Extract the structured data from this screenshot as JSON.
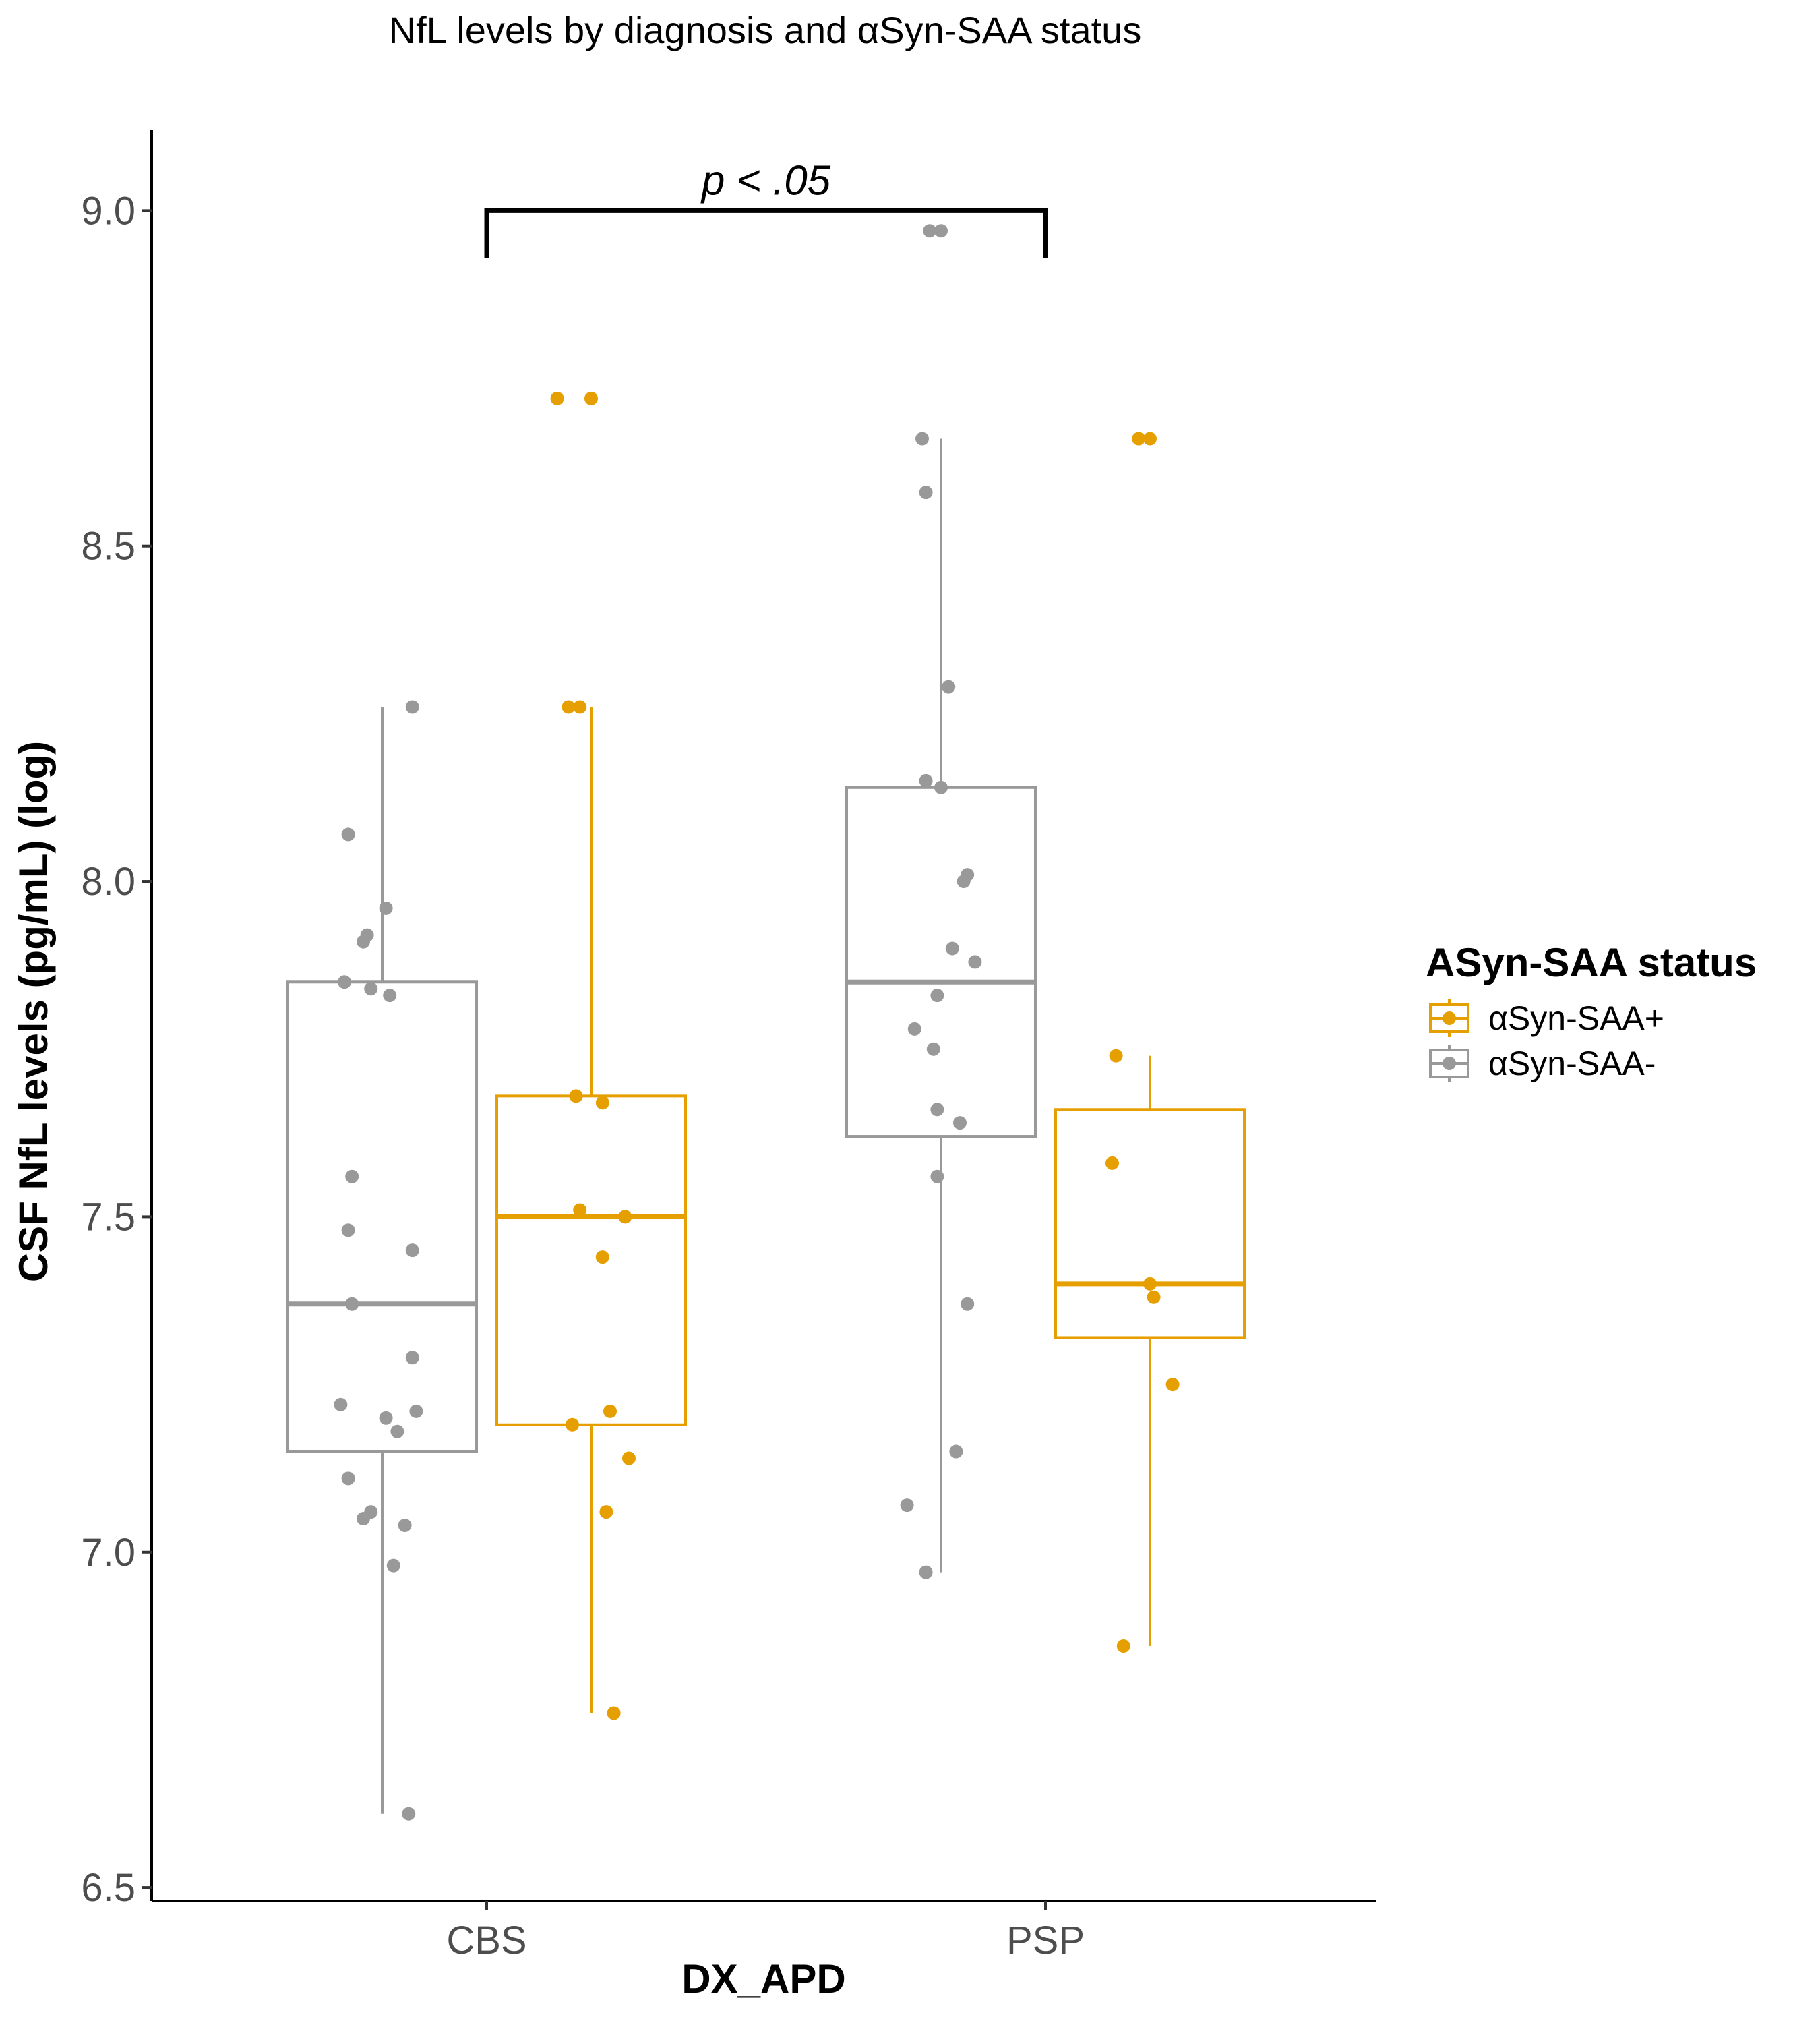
{
  "chart_data": {
    "type": "box",
    "title": "NfL levels by diagnosis and αSyn-SAA status",
    "xlabel": "DX_APD",
    "ylabel": "CSF NfL levels (pg/mL) (log)",
    "categories": [
      "CBS",
      "PSP"
    ],
    "ylim": [
      6.48,
      9.12
    ],
    "yticks": [
      6.5,
      7.0,
      7.5,
      8.0,
      8.5,
      9.0
    ],
    "ytick_labels": [
      "6.5",
      "7.0",
      "7.5",
      "8.0",
      "8.5",
      "9.0"
    ],
    "grid": false,
    "legend": {
      "title": "ASyn-SAA status",
      "placement": "right",
      "items": [
        {
          "label": "αSyn-SAA+",
          "color": "#E69F00"
        },
        {
          "label": "αSyn-SAA-",
          "color": "#999999"
        }
      ]
    },
    "series": [
      {
        "name": "αSyn-SAA+",
        "color": "#E69F00",
        "boxes": [
          {
            "category": "CBS",
            "q1": 7.19,
            "median": 7.5,
            "q3": 7.68,
            "whisker_low": 6.76,
            "whisker_high": 8.26,
            "points": [
              {
                "x": -0.09,
                "y": 8.72
              },
              {
                "x": 0.0,
                "y": 8.72
              },
              {
                "x": -0.06,
                "y": 8.26
              },
              {
                "x": -0.03,
                "y": 8.26
              },
              {
                "x": -0.04,
                "y": 7.68
              },
              {
                "x": 0.03,
                "y": 7.67
              },
              {
                "x": -0.03,
                "y": 7.51
              },
              {
                "x": 0.09,
                "y": 7.5
              },
              {
                "x": 0.03,
                "y": 7.44
              },
              {
                "x": 0.05,
                "y": 7.21
              },
              {
                "x": -0.05,
                "y": 7.19
              },
              {
                "x": 0.1,
                "y": 7.14
              },
              {
                "x": 0.04,
                "y": 7.06
              },
              {
                "x": 0.06,
                "y": 6.76
              }
            ]
          },
          {
            "category": "PSP",
            "q1": 7.32,
            "median": 7.4,
            "q3": 7.66,
            "whisker_low": 6.86,
            "whisker_high": 7.74,
            "points": [
              {
                "x": -0.03,
                "y": 8.66
              },
              {
                "x": 0.0,
                "y": 8.66
              },
              {
                "x": -0.09,
                "y": 7.74
              },
              {
                "x": -0.1,
                "y": 7.58
              },
              {
                "x": 0.0,
                "y": 7.4
              },
              {
                "x": 0.01,
                "y": 7.38
              },
              {
                "x": 0.06,
                "y": 7.25
              },
              {
                "x": -0.07,
                "y": 6.86
              }
            ]
          }
        ]
      },
      {
        "name": "αSyn-SAA-",
        "color": "#999999",
        "boxes": [
          {
            "category": "CBS",
            "q1": 7.15,
            "median": 7.37,
            "q3": 7.85,
            "whisker_low": 6.61,
            "whisker_high": 8.26,
            "points": [
              {
                "x": 0.08,
                "y": 8.26
              },
              {
                "x": -0.09,
                "y": 8.07
              },
              {
                "x": 0.01,
                "y": 7.96
              },
              {
                "x": -0.04,
                "y": 7.92
              },
              {
                "x": -0.05,
                "y": 7.91
              },
              {
                "x": -0.1,
                "y": 7.85
              },
              {
                "x": -0.03,
                "y": 7.84
              },
              {
                "x": 0.02,
                "y": 7.83
              },
              {
                "x": -0.08,
                "y": 7.56
              },
              {
                "x": -0.09,
                "y": 7.48
              },
              {
                "x": 0.08,
                "y": 7.45
              },
              {
                "x": -0.08,
                "y": 7.37
              },
              {
                "x": 0.08,
                "y": 7.29
              },
              {
                "x": -0.11,
                "y": 7.22
              },
              {
                "x": 0.09,
                "y": 7.21
              },
              {
                "x": 0.01,
                "y": 7.2
              },
              {
                "x": 0.04,
                "y": 7.18
              },
              {
                "x": -0.09,
                "y": 7.11
              },
              {
                "x": -0.03,
                "y": 7.06
              },
              {
                "x": -0.05,
                "y": 7.05
              },
              {
                "x": 0.06,
                "y": 7.04
              },
              {
                "x": 0.03,
                "y": 6.98
              },
              {
                "x": 0.07,
                "y": 6.61
              }
            ]
          },
          {
            "category": "PSP",
            "q1": 7.62,
            "median": 7.85,
            "q3": 8.14,
            "whisker_low": 6.97,
            "whisker_high": 8.66,
            "points": [
              {
                "x": -0.03,
                "y": 8.97
              },
              {
                "x": 0.0,
                "y": 8.97
              },
              {
                "x": -0.05,
                "y": 8.66
              },
              {
                "x": -0.04,
                "y": 8.58
              },
              {
                "x": 0.02,
                "y": 8.29
              },
              {
                "x": -0.04,
                "y": 8.15
              },
              {
                "x": 0.0,
                "y": 8.14
              },
              {
                "x": 0.07,
                "y": 8.01
              },
              {
                "x": 0.06,
                "y": 8.0
              },
              {
                "x": 0.03,
                "y": 7.9
              },
              {
                "x": 0.09,
                "y": 7.88
              },
              {
                "x": -0.01,
                "y": 7.83
              },
              {
                "x": -0.07,
                "y": 7.78
              },
              {
                "x": -0.02,
                "y": 7.75
              },
              {
                "x": -0.01,
                "y": 7.66
              },
              {
                "x": 0.05,
                "y": 7.64
              },
              {
                "x": -0.01,
                "y": 7.56
              },
              {
                "x": 0.07,
                "y": 7.37
              },
              {
                "x": 0.04,
                "y": 7.15
              },
              {
                "x": -0.09,
                "y": 7.07
              },
              {
                "x": -0.04,
                "y": 6.97
              }
            ]
          }
        ]
      }
    ],
    "annotations": [
      {
        "text": "p < .05",
        "from_category": "CBS",
        "to_category": "PSP",
        "y": 9.0,
        "y_drop": 8.93
      }
    ]
  }
}
